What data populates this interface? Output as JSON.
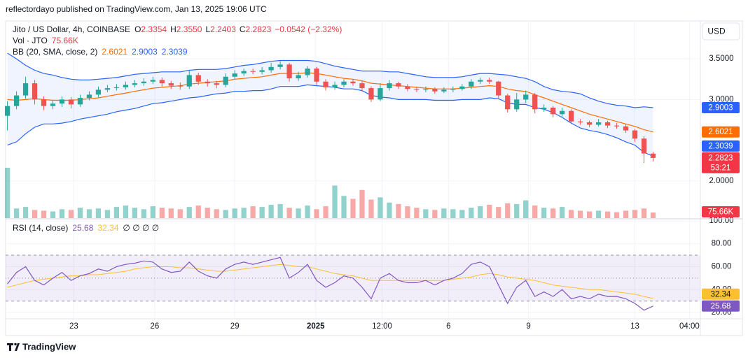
{
  "header": {
    "publisher": "reflectordayo published on TradingView.com, Jan 13, 2025 19:06 UTC"
  },
  "chart_data": {
    "type": "candlestick",
    "title": "Jito / US Dollar, 4h, COINBASE",
    "ohlc_legend": {
      "O": "2.3354",
      "H": "2.3550",
      "L": "2.2403",
      "C": "2.2823",
      "change": "−0.0542 (−2.32%)"
    },
    "currency": "USD",
    "countdown": "53:21",
    "up_color": "#26a69a",
    "down_color": "#ef5350",
    "xlim": [
      -0.2,
      76.2
    ],
    "xticks": [
      {
        "value": 7.3,
        "label": "23"
      },
      {
        "value": 16.2,
        "label": "26"
      },
      {
        "value": 25.0,
        "label": "29"
      },
      {
        "value": 33.9,
        "label": "2025"
      },
      {
        "value": 41.2,
        "label": "12:00"
      },
      {
        "value": 48.5,
        "label": "6"
      },
      {
        "value": 57.3,
        "label": "9"
      },
      {
        "value": 69.0,
        "label": "13"
      },
      {
        "value": 75.0,
        "label": "04:00"
      }
    ],
    "ylim": [
      1.543,
      3.948
    ],
    "yticks": [
      {
        "value": 3.5,
        "label": "3.5000"
      },
      {
        "value": 3.0,
        "label": "3.0000"
      },
      {
        "value": 2.0,
        "label": "2.0000"
      }
    ],
    "grid": true,
    "open": [
      2.8,
      2.92,
      3.05,
      3.2,
      3.0,
      2.92,
      2.95,
      3.0,
      2.94,
      3.02,
      3.06,
      3.12,
      3.14,
      3.15,
      3.18,
      3.2,
      3.22,
      3.24,
      3.2,
      3.17,
      3.16,
      3.3,
      3.22,
      3.2,
      3.18,
      3.28,
      3.32,
      3.35,
      3.34,
      3.36,
      3.4,
      3.43,
      3.26,
      3.3,
      3.38,
      3.22,
      3.15,
      3.18,
      3.22,
      3.2,
      3.14,
      3.0,
      3.14,
      3.2,
      3.16,
      3.13,
      3.12,
      3.13,
      3.1,
      3.12,
      3.13,
      3.16,
      3.22,
      3.24,
      3.22,
      3.05,
      2.88,
      3.0,
      3.06,
      2.88,
      2.9,
      2.82,
      2.86,
      2.73,
      2.72,
      2.69,
      2.72,
      2.68,
      2.67,
      2.62,
      2.52,
      2.3354
    ],
    "high": [
      2.98,
      3.1,
      3.28,
      3.24,
      3.04,
      2.99,
      3.04,
      3.03,
      3.06,
      3.1,
      3.16,
      3.18,
      3.19,
      3.22,
      3.24,
      3.26,
      3.28,
      3.27,
      3.23,
      3.21,
      3.36,
      3.33,
      3.25,
      3.23,
      3.32,
      3.36,
      3.38,
      3.38,
      3.4,
      3.45,
      3.47,
      3.45,
      3.34,
      3.41,
      3.4,
      3.25,
      3.22,
      3.25,
      3.25,
      3.23,
      3.16,
      3.2,
      3.24,
      3.22,
      3.19,
      3.16,
      3.16,
      3.15,
      3.15,
      3.16,
      3.19,
      3.25,
      3.27,
      3.27,
      3.23,
      3.07,
      3.08,
      3.11,
      3.08,
      2.94,
      2.92,
      2.9,
      2.88,
      2.76,
      2.74,
      2.76,
      2.74,
      2.71,
      2.7,
      2.64,
      2.55,
      2.355
    ],
    "low": [
      2.62,
      2.88,
      3.01,
      2.94,
      2.87,
      2.88,
      2.91,
      2.89,
      2.91,
      2.99,
      3.03,
      3.09,
      3.11,
      3.12,
      3.15,
      3.17,
      3.19,
      3.16,
      3.13,
      3.12,
      3.13,
      3.18,
      3.16,
      3.14,
      3.15,
      3.25,
      3.29,
      3.31,
      3.31,
      3.33,
      3.37,
      3.22,
      3.23,
      3.27,
      3.18,
      3.11,
      3.12,
      3.15,
      3.17,
      3.1,
      2.97,
      2.98,
      3.11,
      3.13,
      3.1,
      3.09,
      3.09,
      3.07,
      3.08,
      3.09,
      3.11,
      3.13,
      3.19,
      3.19,
      3.01,
      2.84,
      2.85,
      2.96,
      2.83,
      2.85,
      2.78,
      2.79,
      2.7,
      2.69,
      2.66,
      2.67,
      2.65,
      2.64,
      2.59,
      2.48,
      2.22,
      2.2403
    ],
    "close": [
      2.92,
      3.05,
      3.2,
      3.0,
      2.92,
      2.95,
      3.0,
      2.94,
      3.02,
      3.06,
      3.12,
      3.14,
      3.15,
      3.18,
      3.2,
      3.22,
      3.24,
      3.2,
      3.17,
      3.16,
      3.3,
      3.22,
      3.2,
      3.18,
      3.28,
      3.32,
      3.35,
      3.34,
      3.36,
      3.4,
      3.43,
      3.26,
      3.3,
      3.38,
      3.22,
      3.15,
      3.18,
      3.22,
      3.2,
      3.14,
      3.0,
      3.14,
      3.2,
      3.16,
      3.13,
      3.12,
      3.13,
      3.1,
      3.12,
      3.13,
      3.16,
      3.22,
      3.24,
      3.22,
      3.05,
      2.88,
      3.0,
      3.06,
      2.88,
      2.9,
      2.82,
      2.86,
      2.73,
      2.72,
      2.69,
      2.72,
      2.68,
      2.67,
      2.62,
      2.52,
      2.3365,
      2.2823
    ],
    "volume": {
      "name": "Vol · JTO",
      "label": "75.66K",
      "values": [
        680000,
        130000,
        150000,
        110000,
        100000,
        90000,
        120000,
        110000,
        140000,
        120000,
        130000,
        110000,
        150000,
        170000,
        140000,
        120000,
        160000,
        140000,
        130000,
        120000,
        150000,
        170000,
        140000,
        120000,
        110000,
        130000,
        140000,
        160000,
        150000,
        180000,
        190000,
        140000,
        130000,
        170000,
        120000,
        160000,
        440000,
        300000,
        260000,
        380000,
        250000,
        280000,
        210000,
        190000,
        160000,
        140000,
        120000,
        110000,
        130000,
        120000,
        110000,
        140000,
        160000,
        180000,
        150000,
        200000,
        190000,
        240000,
        170000,
        140000,
        130000,
        150000,
        110000,
        100000,
        90000,
        100000,
        90000,
        80000,
        100000,
        110000,
        130000,
        75660
      ]
    },
    "bb": {
      "name": "BB (20, SMA, close, 2)",
      "basis_color": "#ff6d00",
      "band_color": "#2962ff",
      "upper": [
        3.57,
        3.5,
        3.42,
        3.36,
        3.32,
        3.3,
        3.27,
        3.25,
        3.24,
        3.24,
        3.25,
        3.26,
        3.27,
        3.29,
        3.31,
        3.32,
        3.33,
        3.34,
        3.34,
        3.34,
        3.36,
        3.37,
        3.37,
        3.37,
        3.38,
        3.4,
        3.42,
        3.43,
        3.45,
        3.47,
        3.48,
        3.48,
        3.48,
        3.48,
        3.47,
        3.44,
        3.41,
        3.39,
        3.37,
        3.35,
        3.35,
        3.35,
        3.34,
        3.34,
        3.32,
        3.3,
        3.28,
        3.27,
        3.27,
        3.27,
        3.28,
        3.3,
        3.32,
        3.32,
        3.31,
        3.3,
        3.28,
        3.26,
        3.22,
        3.16,
        3.12,
        3.1,
        3.09,
        3.07,
        3.02,
        2.98,
        2.95,
        2.93,
        2.92,
        2.9,
        2.91,
        2.9003
      ],
      "basis": [
        3.0,
        2.99,
        3.0,
        3.01,
        3.0,
        2.99,
        2.99,
        2.99,
        3.0,
        3.01,
        3.02,
        3.04,
        3.06,
        3.08,
        3.1,
        3.12,
        3.14,
        3.15,
        3.16,
        3.17,
        3.19,
        3.2,
        3.21,
        3.22,
        3.23,
        3.25,
        3.26,
        3.27,
        3.28,
        3.3,
        3.32,
        3.32,
        3.32,
        3.33,
        3.32,
        3.3,
        3.28,
        3.26,
        3.25,
        3.23,
        3.2,
        3.19,
        3.18,
        3.17,
        3.16,
        3.15,
        3.14,
        3.13,
        3.13,
        3.13,
        3.14,
        3.15,
        3.16,
        3.17,
        3.16,
        3.13,
        3.11,
        3.1,
        3.06,
        3.02,
        2.98,
        2.94,
        2.9,
        2.86,
        2.82,
        2.79,
        2.76,
        2.73,
        2.7,
        2.67,
        2.63,
        2.6021
      ],
      "lower": [
        2.44,
        2.48,
        2.58,
        2.66,
        2.7,
        2.7,
        2.71,
        2.73,
        2.76,
        2.78,
        2.8,
        2.82,
        2.85,
        2.87,
        2.89,
        2.92,
        2.95,
        2.96,
        2.98,
        3.0,
        3.02,
        3.03,
        3.05,
        3.07,
        3.08,
        3.1,
        3.1,
        3.11,
        3.11,
        3.13,
        3.16,
        3.16,
        3.16,
        3.18,
        3.17,
        3.16,
        3.15,
        3.13,
        3.13,
        3.11,
        3.05,
        3.03,
        3.02,
        3.0,
        3.0,
        3.0,
        3.0,
        2.99,
        2.99,
        2.99,
        3.0,
        3.0,
        3.0,
        3.02,
        3.01,
        2.96,
        2.94,
        2.94,
        2.9,
        2.88,
        2.84,
        2.78,
        2.71,
        2.65,
        2.62,
        2.6,
        2.57,
        2.53,
        2.48,
        2.44,
        2.35,
        2.3039
      ]
    },
    "rsi": {
      "name": "RSI (14, close)",
      "extra": "∅ ∅ ∅ ∅",
      "color": "#7e57c2",
      "ma_color": "#fbc02d",
      "ylim": [
        15.2,
        100.5
      ],
      "yticks": [
        {
          "value": 100,
          "label": "100.00"
        },
        {
          "value": 80,
          "label": "80.00"
        },
        {
          "value": 60,
          "label": "60.00"
        },
        {
          "value": 40,
          "label": "40.00"
        },
        {
          "value": 20,
          "label": "20.00"
        }
      ],
      "bands": [
        70,
        50,
        30
      ],
      "values": [
        45,
        55,
        60,
        48,
        44,
        50,
        55,
        48,
        52,
        54,
        58,
        56,
        60,
        62,
        63,
        65,
        64,
        58,
        55,
        56,
        64,
        56,
        52,
        50,
        58,
        62,
        64,
        62,
        64,
        66,
        68,
        50,
        55,
        62,
        48,
        42,
        46,
        52,
        50,
        42,
        32,
        50,
        54,
        48,
        46,
        46,
        48,
        44,
        48,
        50,
        54,
        62,
        64,
        60,
        44,
        28,
        42,
        48,
        34,
        38,
        34,
        40,
        32,
        34,
        32,
        36,
        34,
        34,
        32,
        28,
        22,
        25.68
      ],
      "ma": [
        42,
        44,
        46,
        48,
        49,
        50,
        51,
        52,
        52,
        53,
        53,
        54,
        55,
        56,
        58,
        59,
        60,
        60,
        60,
        59,
        59,
        58,
        57,
        56,
        56,
        57,
        58,
        59,
        60,
        61,
        62,
        61,
        60,
        60,
        58,
        56,
        54,
        53,
        52,
        50,
        48,
        48,
        48,
        48,
        48,
        48,
        48,
        48,
        48,
        49,
        50,
        51,
        53,
        54,
        53,
        51,
        50,
        49,
        48,
        46,
        44,
        43,
        42,
        41,
        40,
        40,
        39,
        38,
        37,
        36,
        34,
        32.34
      ]
    }
  },
  "footer": {
    "brand": "TradingView"
  }
}
